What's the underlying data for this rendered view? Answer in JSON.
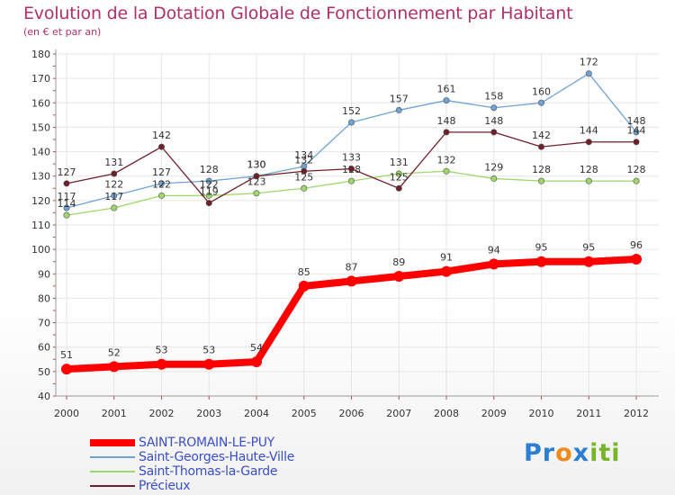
{
  "chart_data": {
    "type": "line",
    "title": "Evolution de la Dotation Globale de Fonctionnement par Habitant",
    "subtitle": "(en € et par an)",
    "x": [
      "2000",
      "2001",
      "2002",
      "2003",
      "2004",
      "2005",
      "2006",
      "2007",
      "2008",
      "2009",
      "2010",
      "2011",
      "2012"
    ],
    "ylim": [
      40,
      180
    ],
    "yticks": [
      "40",
      "50",
      "60",
      "70",
      "80",
      "90",
      "100",
      "110",
      "120",
      "130",
      "140",
      "150",
      "160",
      "170",
      "180"
    ],
    "grid": true,
    "legend_position": "bottom-left",
    "series": [
      {
        "name": "SAINT-ROMAIN-LE-PUY",
        "color": "#ff0000",
        "values": [
          51,
          52,
          53,
          53,
          54,
          85,
          87,
          89,
          91,
          94,
          95,
          95,
          96
        ]
      },
      {
        "name": "Saint-Georges-Haute-Ville",
        "color": "#6fa3d4",
        "values": [
          117,
          122,
          127,
          128,
          130,
          134,
          152,
          157,
          161,
          158,
          160,
          172,
          148
        ]
      },
      {
        "name": "Saint-Thomas-la-Garde",
        "color": "#9ed86a",
        "values": [
          114,
          117,
          122,
          122,
          123,
          125,
          128,
          131,
          132,
          129,
          128,
          128,
          128
        ]
      },
      {
        "name": "Précieux",
        "color": "#6e1f2a",
        "values": [
          127,
          131,
          142,
          119,
          130,
          132,
          133,
          125,
          148,
          148,
          142,
          144,
          144
        ]
      }
    ]
  },
  "logo": {
    "part1": "Pr",
    "part2": "o",
    "part3": "x",
    "part4": "iti"
  }
}
